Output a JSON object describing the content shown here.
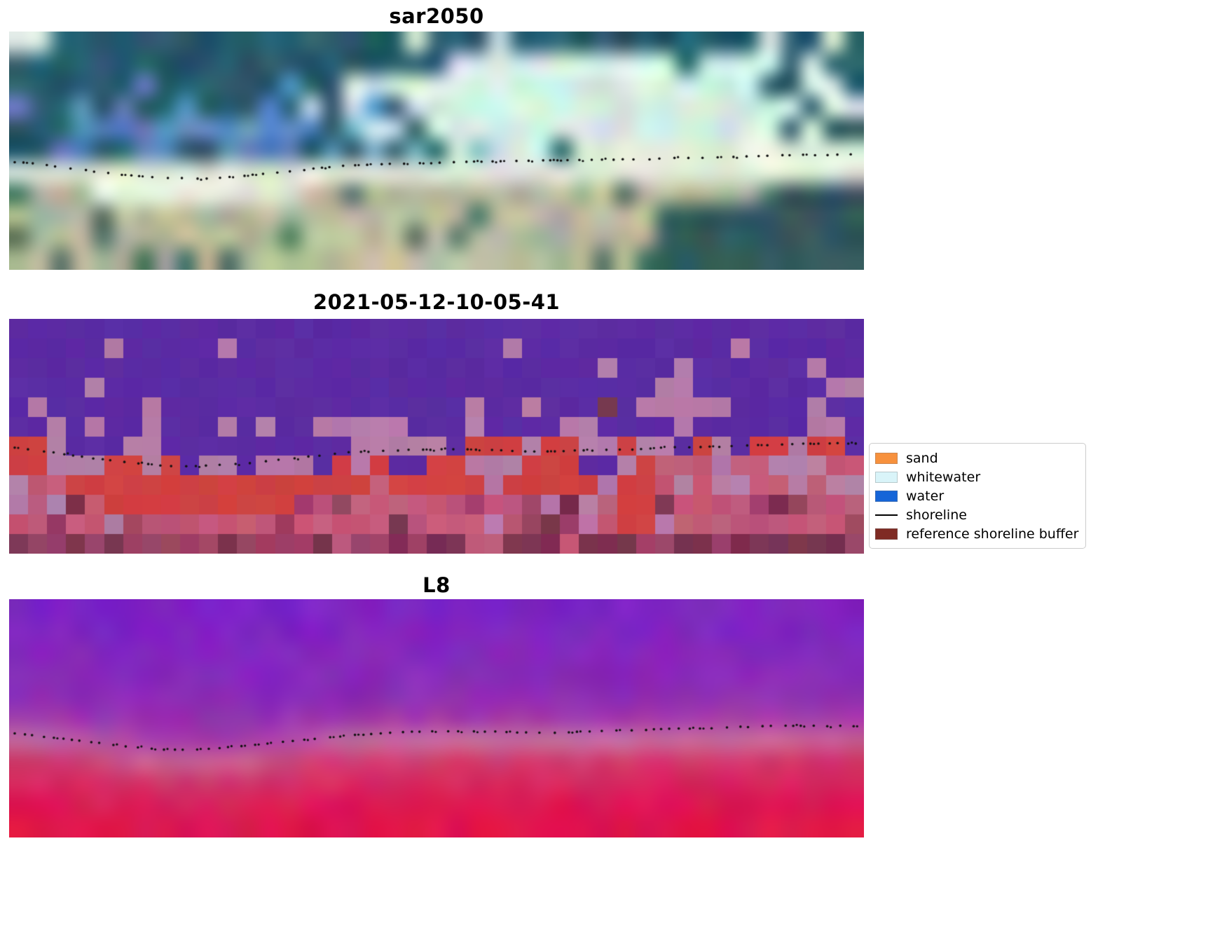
{
  "figure": {
    "background": "#ffffff",
    "panels": [
      {
        "id": "sar2050",
        "title": "sar2050"
      },
      {
        "id": "classification",
        "title": "2021-05-12-10-05-41"
      },
      {
        "id": "l8",
        "title": "L8"
      }
    ],
    "legend": {
      "items": [
        {
          "label": "sand",
          "color": "#f7913d",
          "type": "patch"
        },
        {
          "label": "whitewater",
          "color": "#d9f4f9",
          "type": "patch"
        },
        {
          "label": "water",
          "color": "#1565d8",
          "type": "patch"
        },
        {
          "label": "shoreline",
          "color": "#000000",
          "type": "line"
        },
        {
          "label": "reference shoreline buffer",
          "color": "#7f2b24",
          "type": "patch"
        }
      ]
    },
    "shoreline_dot_color": "#111111",
    "palettes": {
      "sar2050": {
        "water_dark": "#24505f",
        "water_mid": "#2e6475",
        "water_light": "#7fb3c0",
        "water_bright": "#d3ebe4",
        "water_blue": "#5a87c0",
        "beach": "#d9e3cf",
        "beach_bright": "#eef2e6",
        "land_gray": "#a3ad97",
        "land_tan": "#c9c2a2",
        "land_dark": "#4f7361",
        "corner_teal": "#33595c"
      },
      "classification": {
        "water_purple": "#5b2ba3",
        "patch_mauve": "#b57ca8",
        "buffer_red": "#cf4141",
        "land_rose": "#c25a78",
        "land_rose_dark": "#9c4265",
        "land_maroon": "#7c3152",
        "dark_spot": "#7a3b52"
      },
      "l8": {
        "top_purple": "#7b22c4",
        "mid_purple": "#8c2bb4",
        "magenta": "#a53ba8",
        "shore_pink": "#c470a0",
        "rose": "#cf3f72",
        "crimson": "#dc1853",
        "bottom_red": "#e01246"
      }
    }
  },
  "chart_data": [
    {
      "type": "heatmap",
      "title": "sar2050",
      "description": "Pixelated RGB satellite image of a coastline: dark teal ocean with bright white/cyan patches (top), pale sand band (middle), gray-green and tan land with dark green patches (bottom).",
      "overlay": "dotted black shoreline running horizontally near mid-height",
      "legend_position": "none"
    },
    {
      "type": "heatmap",
      "title": "2021-05-12-10-05-41",
      "description": "Discrete classification map: violet-purple water region with scattered mauve patches (top), red reference-shoreline-buffer band along the coast, rose/mauve land with darker maroon patches (bottom).",
      "overlay": "dotted black shoreline running horizontally near mid-height",
      "legend_position": "right",
      "legend_entries": [
        "sand",
        "whitewater",
        "water",
        "shoreline",
        "reference shoreline buffer"
      ]
    },
    {
      "type": "heatmap",
      "title": "L8",
      "description": "False-color Landsat-8 style image: smooth pixelated gradient from deep purple (top) through magenta and a lighter pink band at the shoreline to crimson red (bottom).",
      "overlay": "dotted black shoreline running horizontally near mid-height",
      "legend_position": "none"
    }
  ]
}
